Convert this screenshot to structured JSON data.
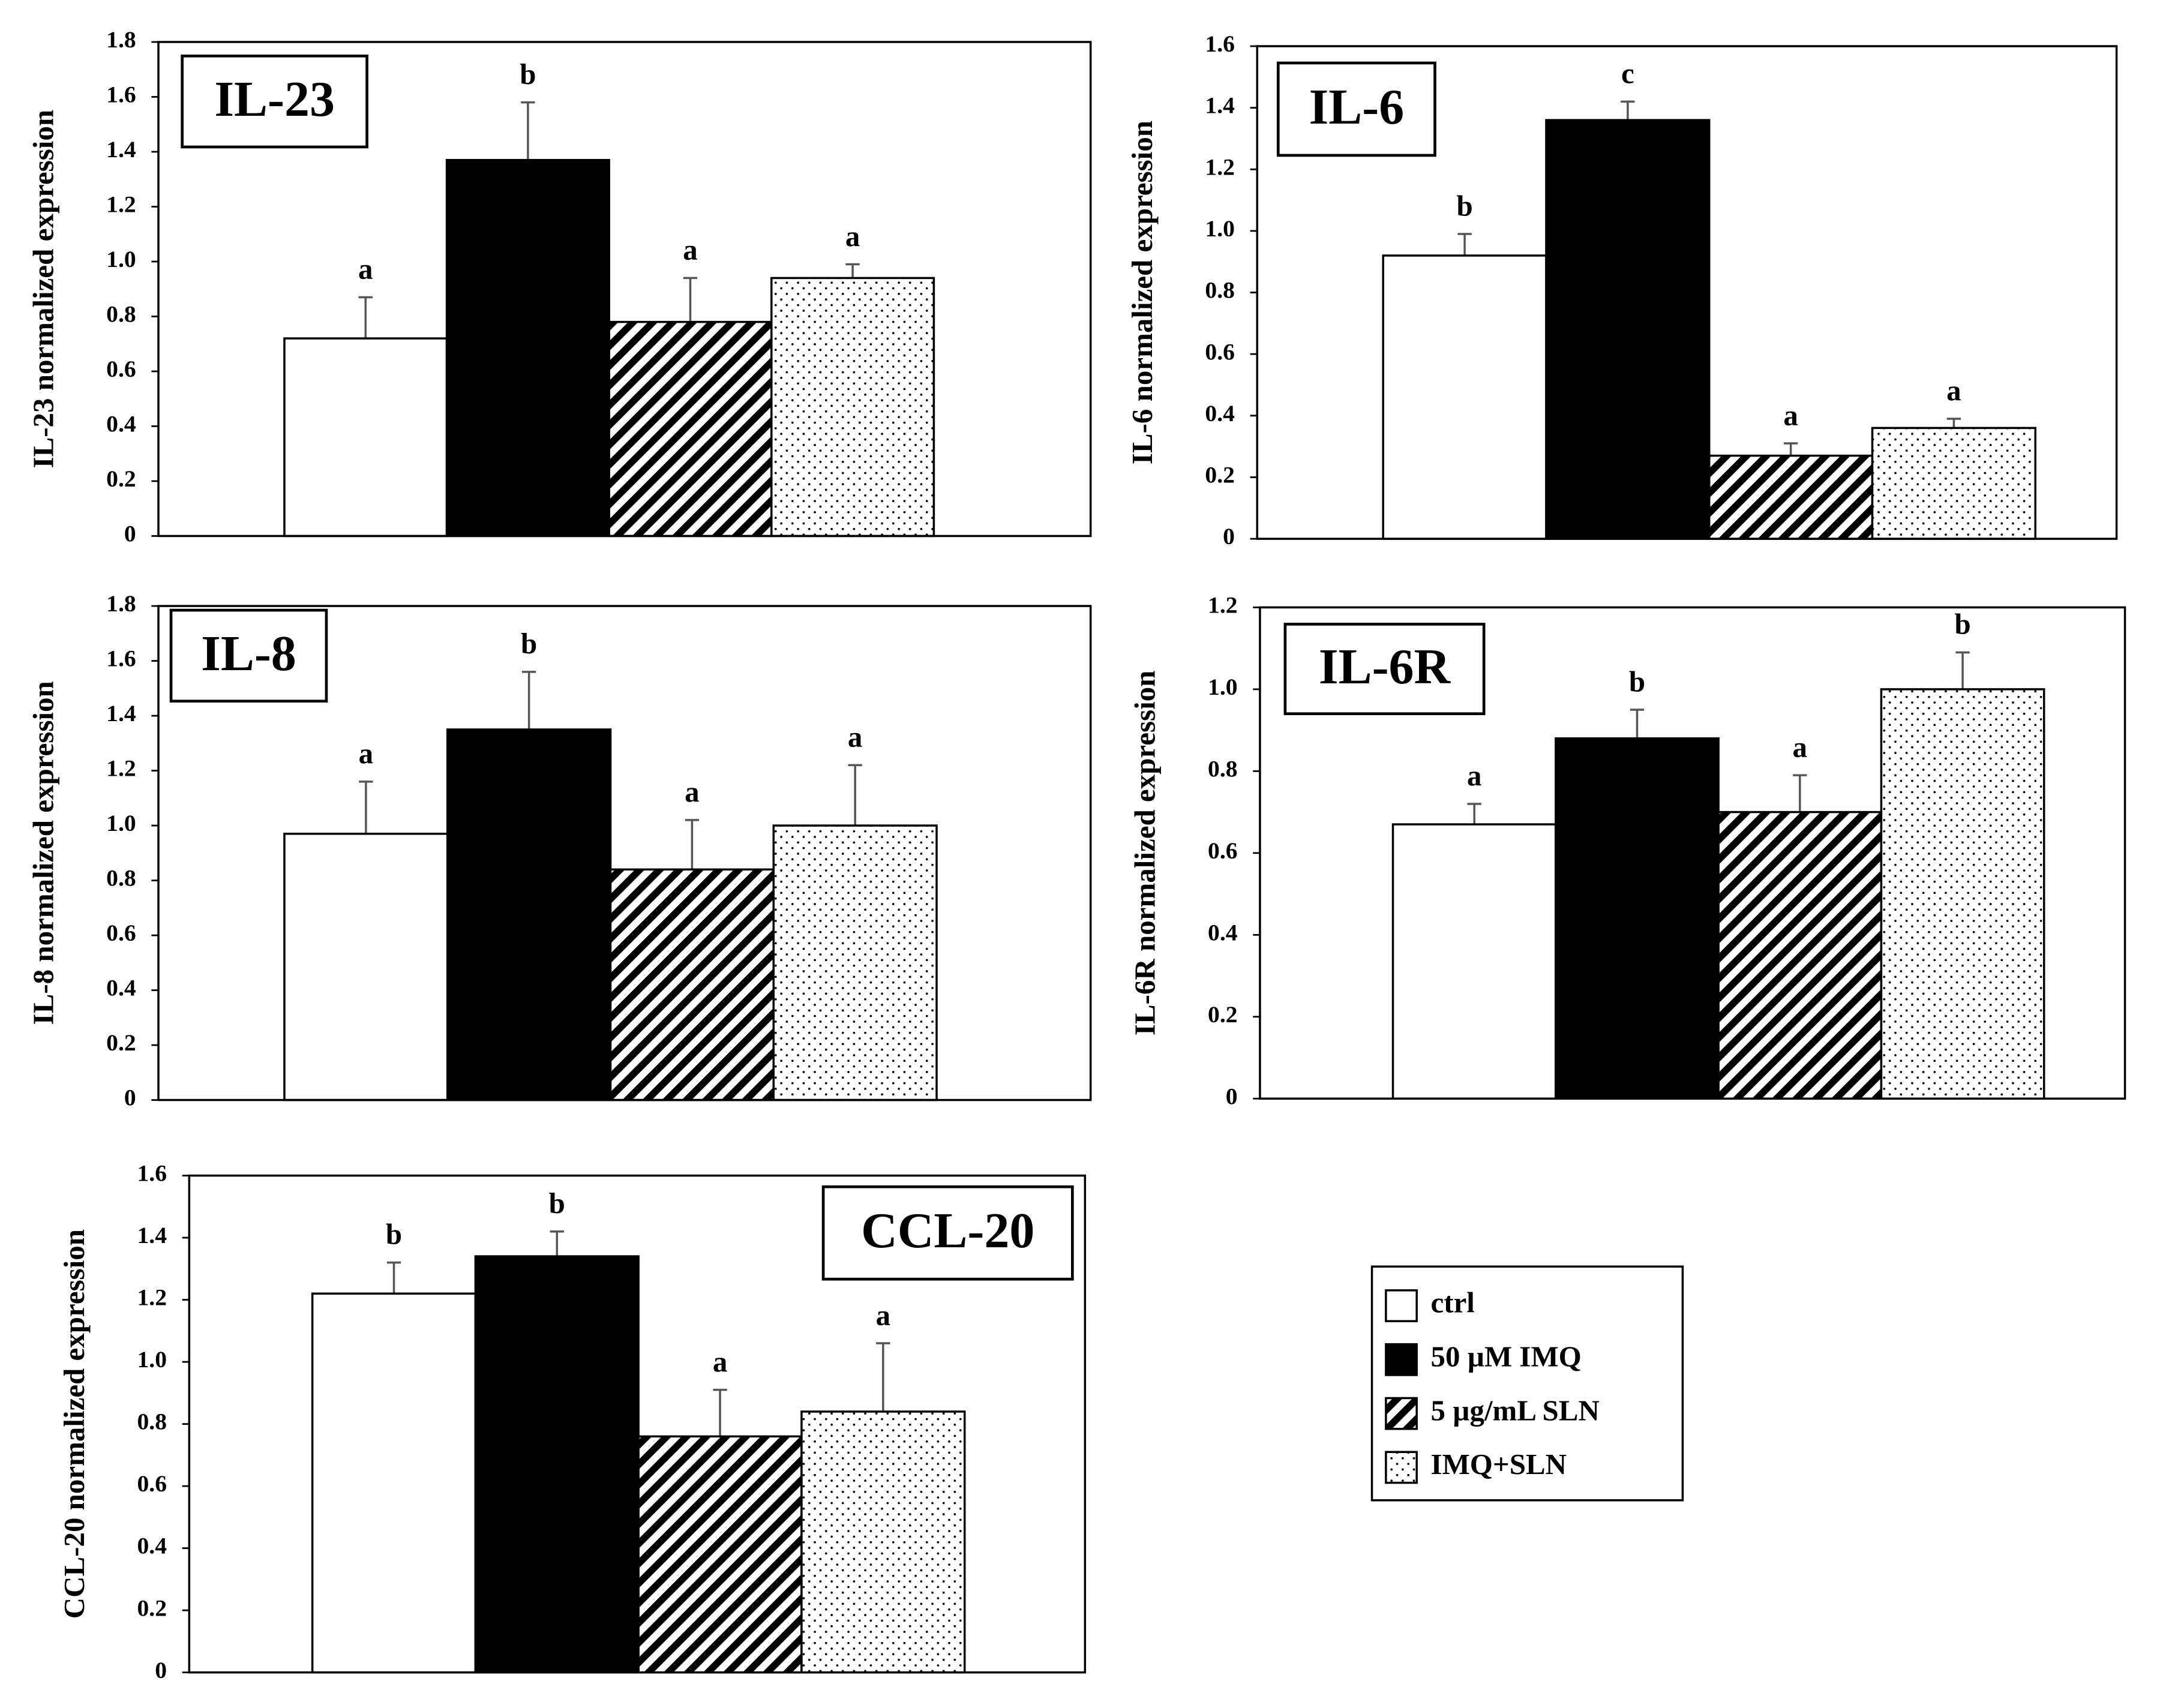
{
  "chart_data": [
    {
      "type": "bar",
      "title": "IL-23",
      "ylabel": "IL-23 normalized expression",
      "values": [
        0.72,
        1.37,
        0.78,
        0.94
      ],
      "errors": [
        0.15,
        0.21,
        0.16,
        0.05
      ],
      "annotations": [
        "a",
        "b",
        "a",
        "a"
      ],
      "ylim": [
        0,
        1.8
      ],
      "yticks": [
        0,
        0.2,
        0.4,
        0.6,
        0.8,
        {
          "value": 1,
          "label": "1.0"
        },
        1.2,
        1.4,
        1.6,
        1.8
      ]
    },
    {
      "type": "bar",
      "title": "IL-6",
      "ylabel": "IL-6 normalized expression",
      "values": [
        0.92,
        1.36,
        0.27,
        0.36
      ],
      "errors": [
        0.07,
        0.06,
        0.04,
        0.03
      ],
      "annotations": [
        "b",
        "c",
        "a",
        "a"
      ],
      "ylim": [
        0,
        1.6
      ],
      "yticks": [
        0,
        0.2,
        0.4,
        0.6,
        0.8,
        {
          "value": 1,
          "label": "1.0"
        },
        1.2,
        1.4,
        1.6
      ]
    },
    {
      "type": "bar",
      "title": "IL-8",
      "ylabel": "IL-8 normalized expression",
      "values": [
        0.97,
        1.35,
        0.84,
        1.0
      ],
      "errors": [
        0.19,
        0.21,
        0.18,
        0.22
      ],
      "annotations": [
        "a",
        "b",
        "a",
        "a"
      ],
      "ylim": [
        0,
        1.8
      ],
      "yticks": [
        0,
        0.2,
        0.4,
        0.6,
        0.8,
        {
          "value": 1,
          "label": "1.0"
        },
        1.2,
        1.4,
        1.6,
        1.8
      ]
    },
    {
      "type": "bar",
      "title": "IL-6R",
      "ylabel": "IL-6R normalized expression",
      "values": [
        0.67,
        0.88,
        0.7,
        1.0
      ],
      "errors": [
        0.05,
        0.07,
        0.09,
        0.09
      ],
      "annotations": [
        "a",
        "b",
        "a",
        "b"
      ],
      "ylim": [
        0,
        1.2
      ],
      "yticks": [
        0,
        0.2,
        0.4,
        0.6,
        0.8,
        {
          "value": 1,
          "label": "1.0"
        },
        1.2
      ]
    },
    {
      "type": "bar",
      "title": "CCL-20",
      "ylabel": "CCL-20 normalized expression",
      "values": [
        1.22,
        1.34,
        0.76,
        0.84
      ],
      "errors": [
        0.1,
        0.08,
        0.15,
        0.22
      ],
      "annotations": [
        "b",
        "b",
        "a",
        "a"
      ],
      "ylim": [
        0,
        1.6
      ],
      "yticks": [
        0,
        0.2,
        0.4,
        0.6,
        0.8,
        {
          "value": 1,
          "label": "1.0"
        },
        1.2,
        1.4,
        1.6
      ]
    }
  ],
  "legend": {
    "names": [
      "ctrl",
      "50 µM IMQ",
      "5 µg/mL SLN",
      "IMQ+SLN"
    ],
    "fills": [
      "#ffffff",
      "#000000",
      "url(#hatch)",
      "url(#dots)"
    ]
  }
}
